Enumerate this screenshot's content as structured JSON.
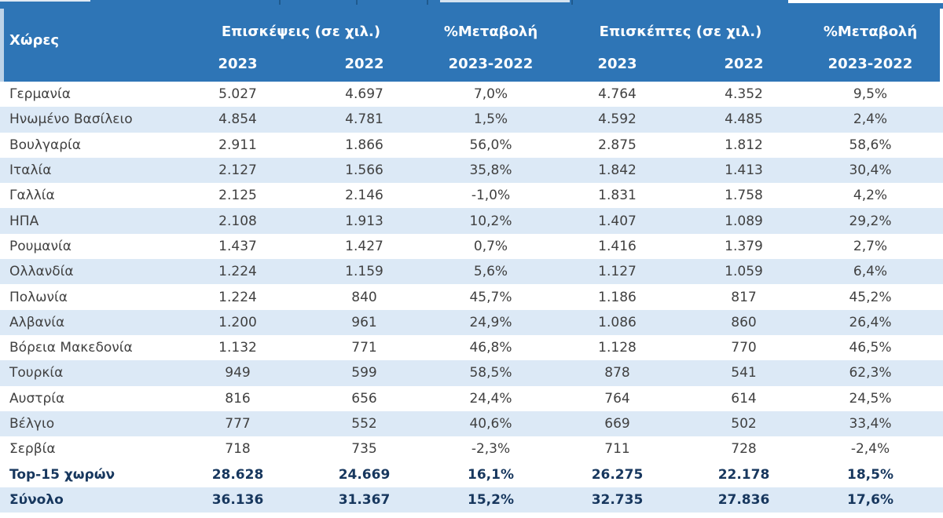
{
  "colors": {
    "header_bg": "#2E75B6",
    "stripe_bg": "#DCE9F6",
    "body_text": "#404040",
    "totals_text": "#17375E",
    "left_strip": "#BDD3E8"
  },
  "chart_data": {
    "type": "table",
    "header": {
      "country_label": "Χώρες",
      "groups": [
        "Επισκέψεις (σε χιλ.)",
        "%Μεταβολή",
        "Επισκέπτες (σε χιλ.)",
        "%Μεταβολή"
      ],
      "years": [
        "2023",
        "2022",
        "2023-2022",
        "2023",
        "2022",
        "2023-2022"
      ]
    },
    "rows": [
      {
        "country": "Γερμανία",
        "visits_2023": "5.027",
        "visits_2022": "4.697",
        "visits_change": "7,0%",
        "visitors_2023": "4.764",
        "visitors_2022": "4.352",
        "visitors_change": "9,5%"
      },
      {
        "country": "Ηνωμένο Βασίλειο",
        "visits_2023": "4.854",
        "visits_2022": "4.781",
        "visits_change": "1,5%",
        "visitors_2023": "4.592",
        "visitors_2022": "4.485",
        "visitors_change": "2,4%"
      },
      {
        "country": "Βουλγαρία",
        "visits_2023": "2.911",
        "visits_2022": "1.866",
        "visits_change": "56,0%",
        "visitors_2023": "2.875",
        "visitors_2022": "1.812",
        "visitors_change": "58,6%"
      },
      {
        "country": "Ιταλία",
        "visits_2023": "2.127",
        "visits_2022": "1.566",
        "visits_change": "35,8%",
        "visitors_2023": "1.842",
        "visitors_2022": "1.413",
        "visitors_change": "30,4%"
      },
      {
        "country": "Γαλλία",
        "visits_2023": "2.125",
        "visits_2022": "2.146",
        "visits_change": "-1,0%",
        "visitors_2023": "1.831",
        "visitors_2022": "1.758",
        "visitors_change": "4,2%"
      },
      {
        "country": "ΗΠΑ",
        "visits_2023": "2.108",
        "visits_2022": "1.913",
        "visits_change": "10,2%",
        "visitors_2023": "1.407",
        "visitors_2022": "1.089",
        "visitors_change": "29,2%"
      },
      {
        "country": "Ρουμανία",
        "visits_2023": "1.437",
        "visits_2022": "1.427",
        "visits_change": "0,7%",
        "visitors_2023": "1.416",
        "visitors_2022": "1.379",
        "visitors_change": "2,7%"
      },
      {
        "country": "Ολλανδία",
        "visits_2023": "1.224",
        "visits_2022": "1.159",
        "visits_change": "5,6%",
        "visitors_2023": "1.127",
        "visitors_2022": "1.059",
        "visitors_change": "6,4%"
      },
      {
        "country": "Πολωνία",
        "visits_2023": "1.224",
        "visits_2022": "840",
        "visits_change": "45,7%",
        "visitors_2023": "1.186",
        "visitors_2022": "817",
        "visitors_change": "45,2%"
      },
      {
        "country": "Αλβανία",
        "visits_2023": "1.200",
        "visits_2022": "961",
        "visits_change": "24,9%",
        "visitors_2023": "1.086",
        "visitors_2022": "860",
        "visitors_change": "26,4%"
      },
      {
        "country": "Βόρεια Μακεδονία",
        "visits_2023": "1.132",
        "visits_2022": "771",
        "visits_change": "46,8%",
        "visitors_2023": "1.128",
        "visitors_2022": "770",
        "visitors_change": "46,5%"
      },
      {
        "country": "Τουρκία",
        "visits_2023": "949",
        "visits_2022": "599",
        "visits_change": "58,5%",
        "visitors_2023": "878",
        "visitors_2022": "541",
        "visitors_change": "62,3%"
      },
      {
        "country": "Αυστρία",
        "visits_2023": "816",
        "visits_2022": "656",
        "visits_change": "24,4%",
        "visitors_2023": "764",
        "visitors_2022": "614",
        "visitors_change": "24,5%"
      },
      {
        "country": "Βέλγιο",
        "visits_2023": "777",
        "visits_2022": "552",
        "visits_change": "40,6%",
        "visitors_2023": "669",
        "visitors_2022": "502",
        "visitors_change": "33,4%"
      },
      {
        "country": "Σερβία",
        "visits_2023": "718",
        "visits_2022": "735",
        "visits_change": "-2,3%",
        "visitors_2023": "711",
        "visitors_2022": "728",
        "visitors_change": "-2,4%"
      }
    ],
    "totals": [
      {
        "label": "Top-15 χωρών",
        "visits_2023": "28.628",
        "visits_2022": "24.669",
        "visits_change": "16,1%",
        "visitors_2023": "26.275",
        "visitors_2022": "22.178",
        "visitors_change": "18,5%"
      },
      {
        "label": "Σύνολο",
        "visits_2023": "36.136",
        "visits_2022": "31.367",
        "visits_change": "15,2%",
        "visitors_2023": "32.735",
        "visitors_2022": "27.836",
        "visitors_change": "17,6%"
      }
    ]
  }
}
